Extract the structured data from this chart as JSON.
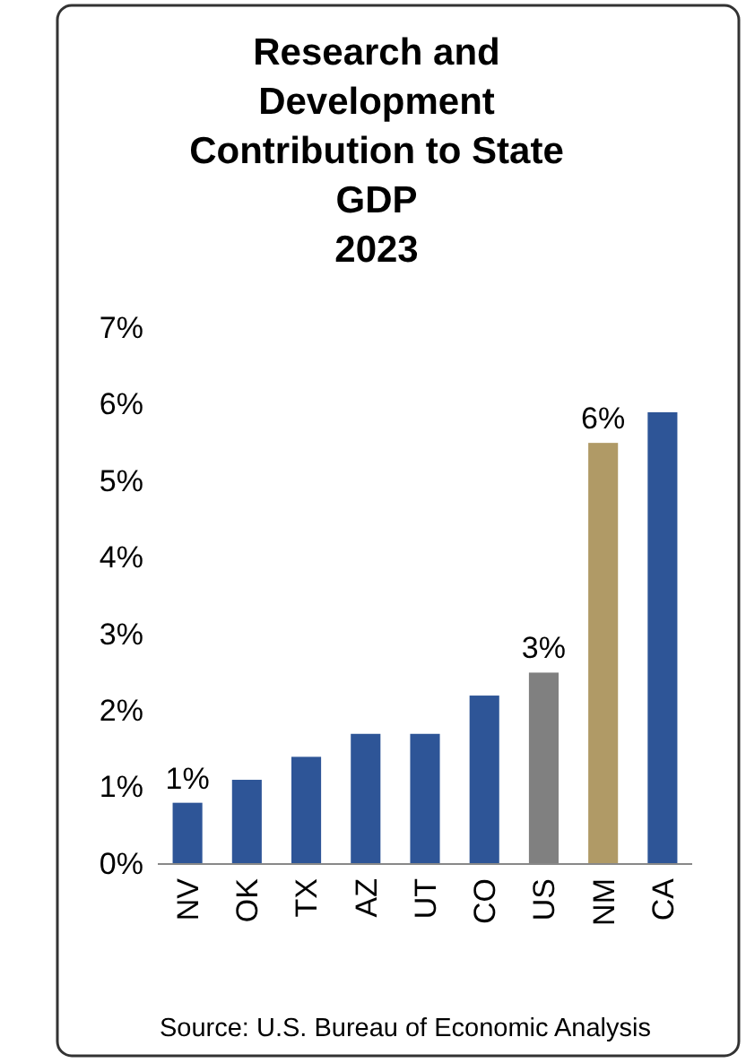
{
  "chart_data": {
    "type": "bar",
    "title": "Research and\nDevelopment\nContribution to State\nGDP\n2023",
    "categories": [
      "NV",
      "OK",
      "TX",
      "AZ",
      "UT",
      "CO",
      "US",
      "NM",
      "CA"
    ],
    "values": [
      0.8,
      1.1,
      1.4,
      1.7,
      1.7,
      2.2,
      2.5,
      5.5,
      5.9
    ],
    "colors": [
      "#2e5597",
      "#2e5597",
      "#2e5597",
      "#2e5597",
      "#2e5597",
      "#2e5597",
      "#808080",
      "#b09a66",
      "#2e5597"
    ],
    "value_labels": [
      "1%",
      null,
      null,
      null,
      null,
      null,
      "3%",
      "6%",
      null
    ],
    "ylim": [
      0,
      7
    ],
    "yticks": [
      {
        "value": 0,
        "label": "0%"
      },
      {
        "value": 1,
        "label": "1%"
      },
      {
        "value": 2,
        "label": "2%"
      },
      {
        "value": 3,
        "label": "3%"
      },
      {
        "value": 4,
        "label": "4%"
      },
      {
        "value": 5,
        "label": "5%"
      },
      {
        "value": 6,
        "label": "6%"
      },
      {
        "value": 7,
        "label": "7%"
      }
    ],
    "grid": false,
    "annotations": [
      "Source: U.S. Bureau of Economic Analysis"
    ]
  }
}
